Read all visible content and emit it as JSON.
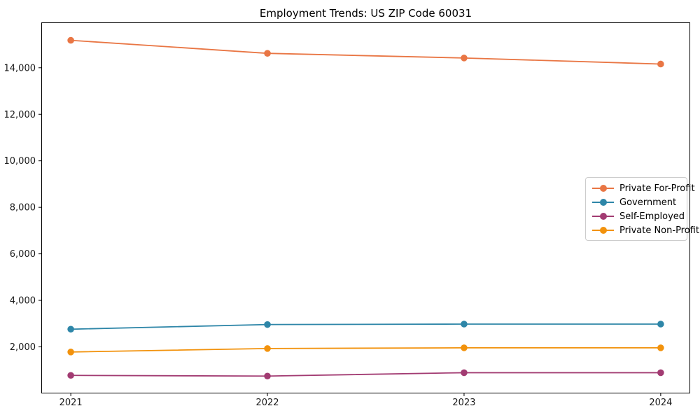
{
  "chart_data": {
    "type": "line",
    "title": "Employment Trends: US ZIP Code 60031",
    "xlabel": "",
    "ylabel": "",
    "x": [
      2021,
      2022,
      2023,
      2024
    ],
    "series": [
      {
        "name": "Private For-Profit",
        "color": "#e97644",
        "values": [
          15180,
          14620,
          14420,
          14160
        ]
      },
      {
        "name": "Government",
        "color": "#2e86a8",
        "values": [
          2760,
          2960,
          2980,
          2980
        ]
      },
      {
        "name": "Self-Employed",
        "color": "#a23b72",
        "values": [
          775,
          745,
          890,
          890
        ]
      },
      {
        "name": "Private Non-Profit",
        "color": "#f2920c",
        "values": [
          1780,
          1930,
          1960,
          1960
        ]
      }
    ],
    "xlim": [
      2020.85,
      2024.15
    ],
    "ylim": [
      0,
      15950
    ],
    "yticks": [
      2000,
      4000,
      6000,
      8000,
      10000,
      12000,
      14000
    ],
    "ytick_labels": [
      "2,000",
      "4,000",
      "6,000",
      "8,000",
      "10,000",
      "12,000",
      "14,000"
    ],
    "xtick_labels": [
      "2021",
      "2022",
      "2023",
      "2024"
    ],
    "grid": false,
    "legend_position": "center right",
    "marker": "circle",
    "colors": {
      "axis": "#000000",
      "tick_label": "#1a1a1a",
      "legend_border": "#cccccc",
      "background": "#ffffff"
    }
  }
}
